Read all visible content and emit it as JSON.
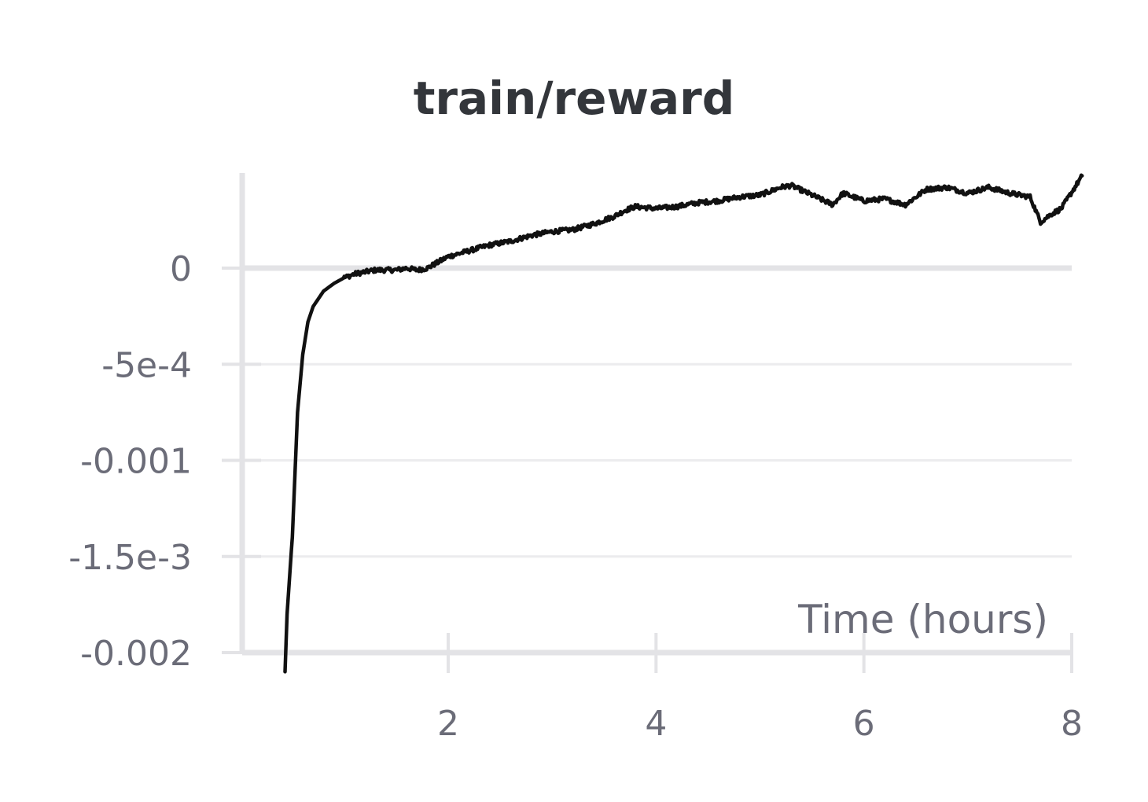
{
  "chart_data": {
    "type": "line",
    "title": "train/reward",
    "xlabel": "Time (hours)",
    "ylabel": "",
    "xlim": [
      0,
      8
    ],
    "ylim": [
      -0.002,
      0.0005
    ],
    "x_ticks": [
      {
        "value": 2,
        "label": "2"
      },
      {
        "value": 4,
        "label": "4"
      },
      {
        "value": 6,
        "label": "6"
      },
      {
        "value": 8,
        "label": "8"
      }
    ],
    "y_ticks": [
      {
        "value": 0,
        "label": "0"
      },
      {
        "value": -0.0005,
        "label": "-5e-4"
      },
      {
        "value": -0.001,
        "label": "-0.001"
      },
      {
        "value": -0.0015,
        "label": "-1.5e-3"
      },
      {
        "value": -0.002,
        "label": "-0.002"
      }
    ],
    "grid": true,
    "line_color": "#111111",
    "series": [
      {
        "x": [
          0.43,
          0.45,
          0.5,
          0.55,
          0.6,
          0.65,
          0.7,
          0.8,
          0.9,
          1.0,
          1.1,
          1.2,
          1.3,
          1.4,
          1.5,
          1.6,
          1.7,
          1.8,
          1.9,
          2.0,
          2.2,
          2.4,
          2.6,
          2.8,
          3.0,
          3.2,
          3.4,
          3.6,
          3.7,
          3.8,
          4.0,
          4.2,
          4.4,
          4.6,
          4.8,
          5.0,
          5.2,
          5.3,
          5.5,
          5.7,
          5.8,
          6.0,
          6.2,
          6.4,
          6.6,
          6.8,
          7.0,
          7.2,
          7.4,
          7.6,
          7.7,
          7.8,
          7.9,
          8.1
        ],
        "y": [
          -0.0021,
          -0.0018,
          -0.0014,
          -0.00075,
          -0.00045,
          -0.00028,
          -0.0002,
          -0.00012,
          -8e-05,
          -5e-05,
          -3e-05,
          -2e-05,
          -1e-05,
          -1e-05,
          -1e-05,
          0.0,
          -1e-05,
          0.0,
          3e-05,
          6e-05,
          9e-05,
          0.00012,
          0.00014,
          0.00017,
          0.00019,
          0.0002,
          0.00023,
          0.00027,
          0.0003,
          0.00032,
          0.00031,
          0.00032,
          0.00034,
          0.00035,
          0.00037,
          0.00038,
          0.00042,
          0.00043,
          0.00038,
          0.00033,
          0.00039,
          0.00035,
          0.00036,
          0.00033,
          0.00041,
          0.00042,
          0.00039,
          0.00042,
          0.00039,
          0.00037,
          0.00024,
          0.00028,
          0.00031,
          0.00048
        ]
      }
    ]
  }
}
